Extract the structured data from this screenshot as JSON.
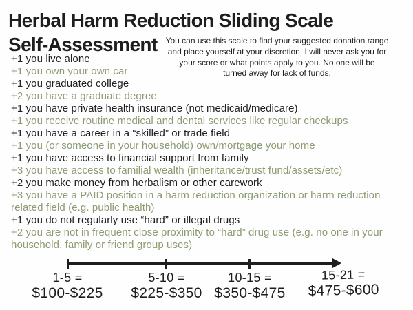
{
  "colors": {
    "ink": "#1e1e1e",
    "green": "#8c9b72"
  },
  "header": {
    "title_line1": "Herbal Harm Reduction Sliding Scale",
    "title_line2": "Self-Assessment",
    "intro_lines": [
      "You can use this scale to find your suggested donation range",
      "and place yourself at your discretion. I will never ask you for",
      "your score or what points apply to you. No one will be",
      "turned away for lack of funds."
    ]
  },
  "list": {
    "items": [
      "+1 you live alone",
      "+1 you own your own car",
      "+1 you graduated college",
      "+2 you have a graduate degree",
      "+1 you have private health insurance (not medicaid/medicare)",
      "+1 you receive routine medical and dental services like regular checkups",
      "+1 you have a career in a “skilled” or trade field",
      "+1 you (or someone in your household) own/mortgage your home",
      "+1 you have access to financial support from family",
      "+3 you have access to familial wealth (inheritance/trust fund/assets/etc)",
      "+2 you make money from herbalism or other carework",
      "+3 you have a PAID position in a harm reduction organization or harm reduction related field (e.g. public health)",
      "+1 you do not regularly use “hard” or illegal drugs",
      "+2 you are not in frequent close proximity to “hard” drug use (e.g. no one in your household, family or friend group uses)"
    ]
  },
  "scale": {
    "segments": [
      {
        "range": "1-5 =",
        "amount": "$100-$225"
      },
      {
        "range": "5-10 =",
        "amount": "$225-$350"
      },
      {
        "range": "10-15 =",
        "amount": "$350-$475"
      },
      {
        "range": "15-21 =",
        "amount": "$475-$600"
      }
    ]
  }
}
